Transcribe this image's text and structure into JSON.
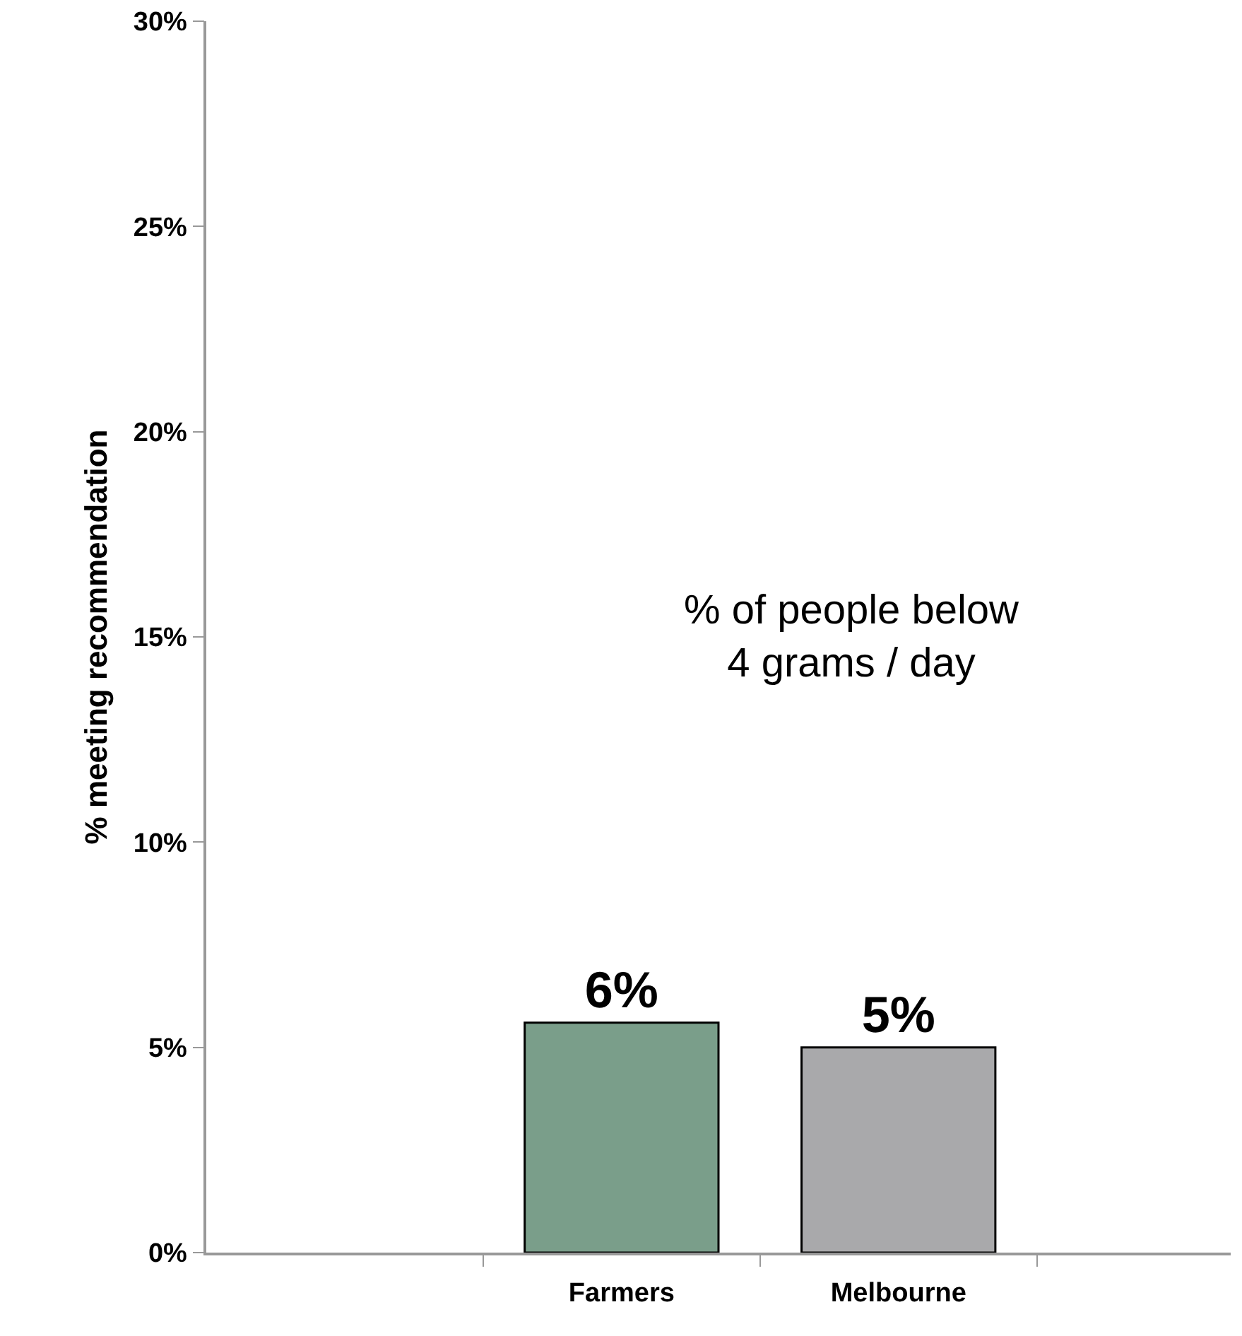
{
  "chart_data": {
    "type": "bar",
    "ylabel": "% meeting recommendation",
    "categories": [
      null,
      "Farmers",
      "Melbourne",
      null
    ],
    "values": [
      null,
      5.6,
      5.0,
      null
    ],
    "colors": [
      "#7a9e8a",
      "#7a9e8a",
      "#a9a9ab",
      "#a9a9ab"
    ],
    "value_labels": [
      null,
      "6%",
      "5%",
      null
    ],
    "ylim": [
      0,
      30
    ],
    "yticks": [
      {
        "value": 0,
        "label": "0%"
      },
      {
        "value": 5,
        "label": "5%"
      },
      {
        "value": 10,
        "label": "10%"
      },
      {
        "value": 15,
        "label": "15%"
      },
      {
        "value": 20,
        "label": "20%"
      },
      {
        "value": 25,
        "label": "25%"
      },
      {
        "value": 30,
        "label": "30%"
      }
    ],
    "annotations": [
      "% of people below\n4 grams / day"
    ],
    "data_labels": false
  }
}
